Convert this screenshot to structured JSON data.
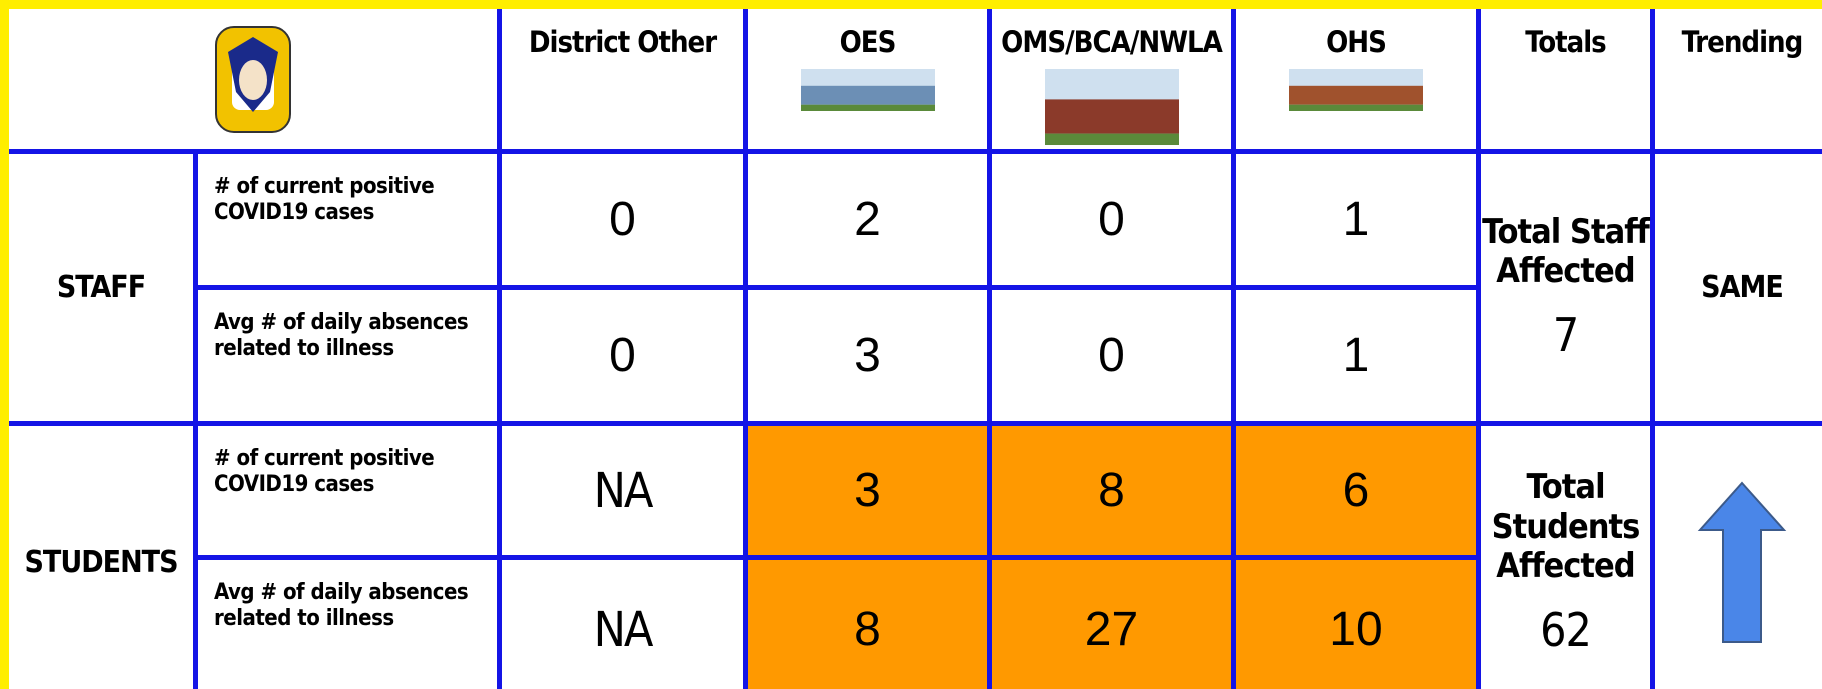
{
  "header": {
    "columns": [
      "District Other",
      "OES",
      "OMS/BCA/NWLA",
      "OHS",
      "Totals",
      "Trending"
    ]
  },
  "staff": {
    "label": "STAFF",
    "rows": [
      {
        "label": "# of current positive COVID19 cases",
        "values": [
          0,
          2,
          0,
          1
        ]
      },
      {
        "label": "Avg #  of daily absences related to illness",
        "values": [
          0,
          3,
          0,
          1
        ]
      }
    ],
    "total_label": "Total Staff Affected",
    "total": 7,
    "trending": "SAME"
  },
  "students": {
    "label": "STUDENTS",
    "rows": [
      {
        "label": "# of current positive COVID19 cases",
        "values": [
          "NA",
          3,
          8,
          6
        ]
      },
      {
        "label": "Avg # of daily  absences related to illness",
        "values": [
          "NA",
          8,
          27,
          10
        ]
      }
    ],
    "total_label": "Total Students Affected",
    "total": 62
  }
}
